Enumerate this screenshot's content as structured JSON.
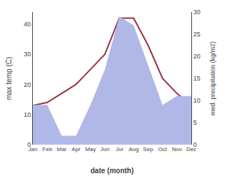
{
  "chart_data": {
    "type": "line",
    "xlabel": "date (month)",
    "ylabel": "max temp (C)",
    "y2label": "med. precipitation (kg/m2)",
    "categories": [
      "Jan",
      "Feb",
      "Mar",
      "Apr",
      "May",
      "Jun",
      "Jul",
      "Aug",
      "Sep",
      "Oct",
      "Nov",
      "Dec"
    ],
    "series": [
      {
        "type": "area",
        "axis": "y2",
        "color": "#b0b8e8",
        "values": [
          9,
          9,
          2,
          2,
          9,
          17,
          29,
          27,
          18,
          9,
          11,
          11
        ]
      },
      {
        "type": "line",
        "axis": "y",
        "color": "#993344",
        "values": [
          13,
          14,
          17,
          20,
          25,
          30,
          42,
          42,
          33,
          22,
          17,
          13
        ]
      }
    ],
    "ylim": [
      0,
      44
    ],
    "yticks": [
      0,
      10,
      20,
      30,
      40
    ],
    "y2lim": [
      0,
      30
    ],
    "y2ticks": [
      0,
      5,
      10,
      15,
      20,
      25,
      30
    ],
    "grid": false
  }
}
